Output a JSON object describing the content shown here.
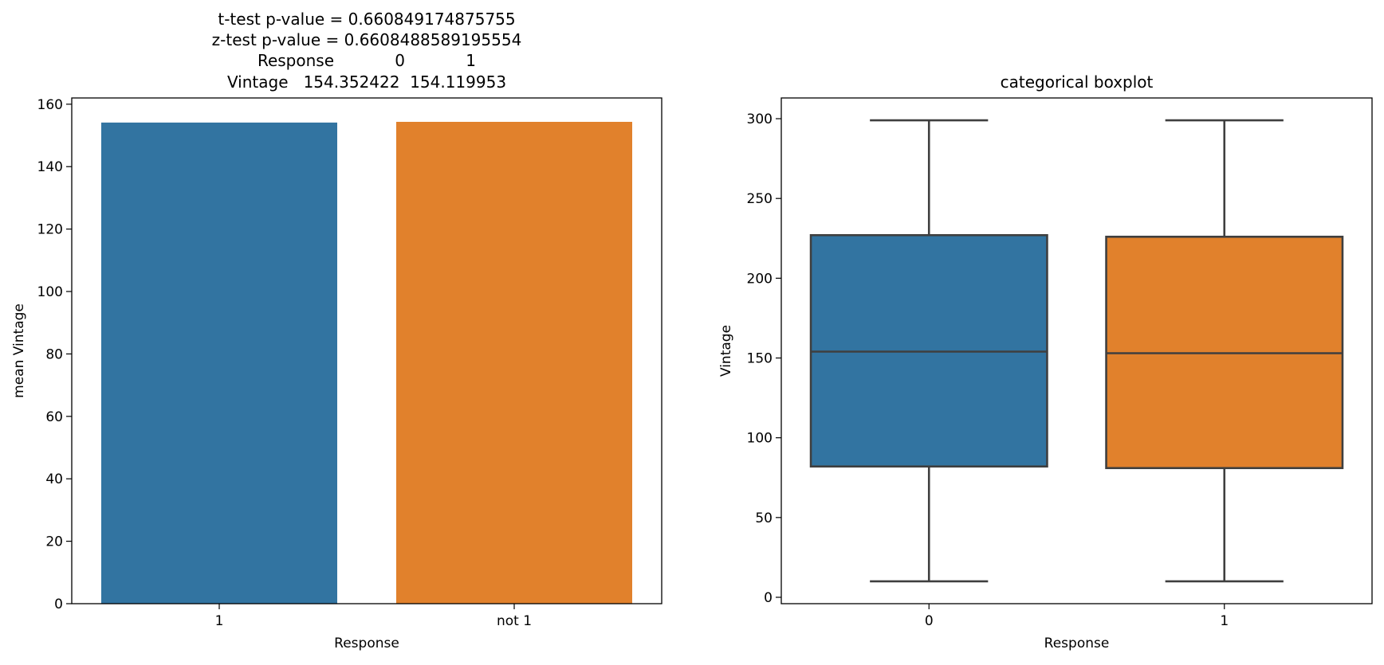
{
  "chart_data": [
    {
      "type": "bar",
      "title_lines": [
        "t-test p-value = 0.660849174875755",
        "z-test p-value = 0.6608488589195554",
        "Response            0            1",
        "Vintage   154.352422  154.119953"
      ],
      "categories": [
        "1",
        "not 1"
      ],
      "values": [
        154.12,
        154.35
      ],
      "colors": [
        "#3274a1",
        "#e1812c"
      ],
      "xlabel": "Response",
      "ylabel": "mean Vintage",
      "ylim": [
        0,
        162
      ],
      "yticks": [
        0,
        20,
        40,
        60,
        80,
        100,
        120,
        140,
        160
      ],
      "grid": false
    },
    {
      "type": "boxplot",
      "title": "categorical boxplot",
      "categories": [
        "0",
        "1"
      ],
      "series": [
        {
          "category": "0",
          "min": 10,
          "q1": 82,
          "median": 154,
          "q3": 227,
          "max": 299,
          "color": "#3274a1"
        },
        {
          "category": "1",
          "min": 10,
          "q1": 81,
          "median": 153,
          "q3": 226,
          "max": 299,
          "color": "#e1812c"
        }
      ],
      "xlabel": "Response",
      "ylabel": "Vintage",
      "ylim": [
        -4,
        313
      ],
      "yticks": [
        0,
        50,
        100,
        150,
        200,
        250,
        300
      ],
      "grid": false
    }
  ]
}
